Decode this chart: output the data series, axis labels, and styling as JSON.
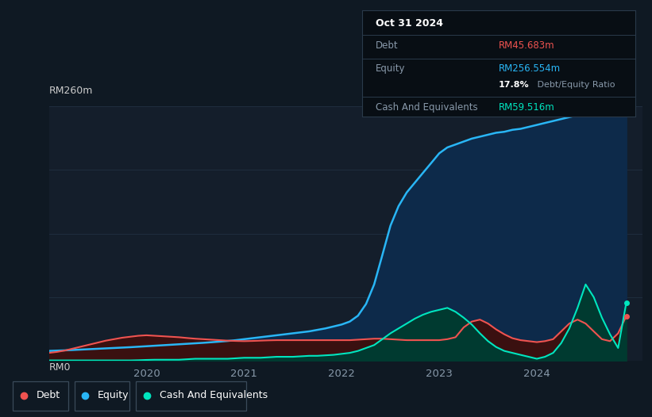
{
  "background_color": "#0f1923",
  "plot_bg_color": "#0f1923",
  "chart_bg_color": "#141e2b",
  "grid_color": "#1e2d3d",
  "tooltip_bg": "#080e14",
  "tooltip_border": "#2a3a4a",
  "ymax": 260,
  "ylabel_top": "RM260m",
  "ylabel_bottom": "RM0",
  "xticks": [
    2020,
    2021,
    2022,
    2023,
    2024
  ],
  "equity_color": "#29b6f6",
  "equity_fill": "#0d2a4a",
  "debt_color": "#ef5350",
  "debt_fill": "#3a1010",
  "cash_color": "#00e5bf",
  "cash_fill": "#003a30",
  "legend_debt": "Debt",
  "legend_equity": "Equity",
  "legend_cash": "Cash And Equivalents",
  "tooltip_date": "Oct 31 2024",
  "tooltip_debt_label": "Debt",
  "tooltip_debt_value": "RM45.683m",
  "tooltip_equity_label": "Equity",
  "tooltip_equity_value": "RM256.554m",
  "tooltip_ratio_pct": "17.8%",
  "tooltip_ratio_label": " Debt/Equity Ratio",
  "tooltip_cash_label": "Cash And Equivalents",
  "tooltip_cash_value": "RM59.516m",
  "x_data": [
    2019.0,
    2019.083,
    2019.167,
    2019.25,
    2019.333,
    2019.417,
    2019.5,
    2019.583,
    2019.667,
    2019.75,
    2019.833,
    2019.917,
    2020.0,
    2020.083,
    2020.167,
    2020.25,
    2020.333,
    2020.417,
    2020.5,
    2020.583,
    2020.667,
    2020.75,
    2020.833,
    2020.917,
    2021.0,
    2021.083,
    2021.167,
    2021.25,
    2021.333,
    2021.417,
    2021.5,
    2021.583,
    2021.667,
    2021.75,
    2021.833,
    2021.917,
    2022.0,
    2022.083,
    2022.167,
    2022.25,
    2022.333,
    2022.417,
    2022.5,
    2022.583,
    2022.667,
    2022.75,
    2022.833,
    2022.917,
    2023.0,
    2023.083,
    2023.167,
    2023.25,
    2023.333,
    2023.417,
    2023.5,
    2023.583,
    2023.667,
    2023.75,
    2023.833,
    2023.917,
    2024.0,
    2024.083,
    2024.167,
    2024.25,
    2024.333,
    2024.417,
    2024.5,
    2024.583,
    2024.667,
    2024.75,
    2024.833,
    2024.917
  ],
  "equity_data": [
    10,
    10.3,
    10.6,
    11,
    11.4,
    11.8,
    12.2,
    12.6,
    13,
    13.4,
    13.8,
    14.3,
    14.8,
    15.3,
    15.8,
    16.3,
    16.8,
    17.3,
    17.8,
    18.3,
    18.9,
    19.5,
    20.2,
    21,
    22,
    23,
    24,
    25,
    26,
    27,
    28,
    29,
    30,
    31.5,
    33,
    35,
    37,
    40,
    46,
    58,
    78,
    108,
    138,
    158,
    172,
    182,
    192,
    202,
    212,
    218,
    221,
    224,
    227,
    229,
    231,
    233,
    234,
    236,
    237,
    239,
    241,
    243,
    245,
    247,
    249,
    251,
    252,
    253,
    254,
    255,
    256,
    256.554
  ],
  "debt_data": [
    8,
    9,
    10.5,
    12.5,
    14.5,
    16.5,
    18.5,
    20.5,
    22,
    23.5,
    24.5,
    25.5,
    26,
    25.5,
    25,
    24.5,
    24,
    23.2,
    22.5,
    22,
    21.5,
    21,
    20.5,
    20.2,
    20,
    20.2,
    20.5,
    20.8,
    21,
    21,
    21,
    21,
    21,
    21,
    21,
    21,
    21,
    21,
    21.5,
    22,
    22.5,
    22.5,
    22,
    21.5,
    21,
    21,
    21,
    21,
    21,
    22,
    24,
    34,
    40,
    42,
    38,
    32,
    27,
    23,
    21,
    20,
    19,
    20,
    22,
    30,
    38,
    42,
    38,
    30,
    22,
    20,
    28,
    45.683
  ],
  "cash_data": [
    0.3,
    0.3,
    0.3,
    0.3,
    0.3,
    0.3,
    0.3,
    0.3,
    0.3,
    0.3,
    0.3,
    0.5,
    0.8,
    1,
    1,
    1,
    1,
    1.5,
    2,
    2,
    2,
    2,
    2,
    2.5,
    3,
    3,
    3,
    3.5,
    4,
    4,
    4,
    4.5,
    5,
    5,
    5.5,
    6,
    7,
    8,
    10,
    13,
    16,
    22,
    28,
    33,
    38,
    43,
    47,
    50,
    52,
    54,
    50,
    44,
    37,
    28,
    20,
    14,
    10,
    8,
    6,
    4,
    2,
    4,
    8,
    18,
    33,
    54,
    78,
    65,
    44,
    27,
    13,
    59.516
  ]
}
